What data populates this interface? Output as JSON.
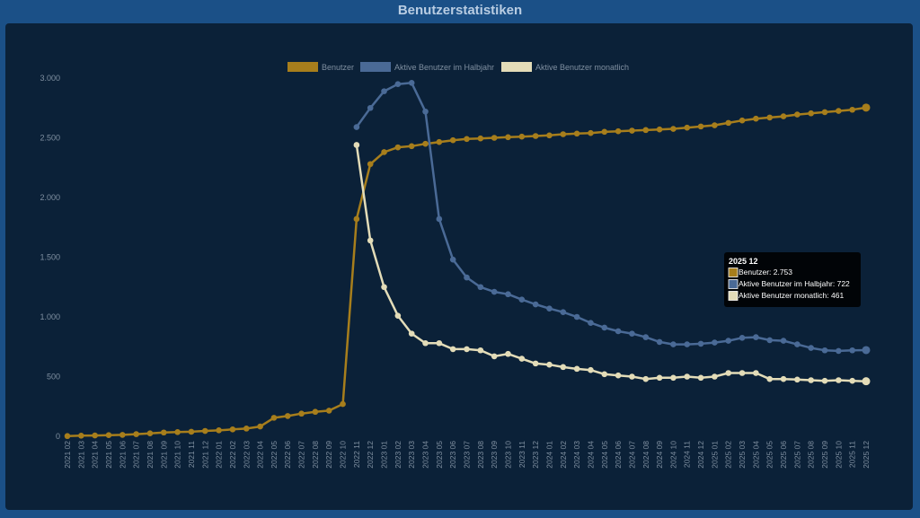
{
  "header": {
    "title": "Benutzerstatistiken"
  },
  "colors": {
    "page_background": "#1b5087",
    "panel_background": "#0b2138",
    "axis_text": "#7f8fa0",
    "benutzer": "#a77e1c",
    "halbjahr": "#4a6a96",
    "monatlich": "#e3dcb8"
  },
  "chart_data": {
    "type": "line",
    "title": "",
    "xlabel": "",
    "ylabel": "",
    "ylim": [
      0,
      3000
    ],
    "yticks": [
      0,
      500,
      1000,
      1500,
      2000,
      2500,
      3000
    ],
    "ytick_labels": [
      "0",
      "500",
      "1.000",
      "1.500",
      "2.000",
      "2.500",
      "3.000"
    ],
    "grid": false,
    "legend_position": "top-center",
    "x": [
      "2021 02",
      "2021 03",
      "2021 04",
      "2021 05",
      "2021 06",
      "2021 07",
      "2021 08",
      "2021 09",
      "2021 10",
      "2021 11",
      "2021 12",
      "2022 01",
      "2022 02",
      "2022 03",
      "2022 04",
      "2022 05",
      "2022 06",
      "2022 07",
      "2022 08",
      "2022 09",
      "2022 10",
      "2022 11",
      "2022 12",
      "2023 01",
      "2023 02",
      "2023 03",
      "2023 04",
      "2023 05",
      "2023 06",
      "2023 07",
      "2023 08",
      "2023 09",
      "2023 10",
      "2023 11",
      "2023 12",
      "2024 01",
      "2024 02",
      "2024 03",
      "2024 04",
      "2024 05",
      "2024 06",
      "2024 07",
      "2024 08",
      "2024 09",
      "2024 10",
      "2024 11",
      "2024 12",
      "2025 01",
      "2025 02",
      "2025 03",
      "2025 04",
      "2025 05",
      "2025 06",
      "2025 07",
      "2025 08",
      "2025 09",
      "2025 10",
      "2025 11",
      "2025 12"
    ],
    "series": [
      {
        "name": "Benutzer",
        "color": "#a77e1c",
        "values": [
          2,
          5,
          7,
          10,
          12,
          18,
          25,
          32,
          35,
          38,
          45,
          50,
          58,
          65,
          82,
          155,
          170,
          190,
          205,
          215,
          270,
          1820,
          2280,
          2380,
          2420,
          2430,
          2450,
          2465,
          2480,
          2490,
          2495,
          2500,
          2505,
          2510,
          2515,
          2520,
          2530,
          2535,
          2540,
          2550,
          2555,
          2560,
          2565,
          2570,
          2575,
          2585,
          2595,
          2605,
          2625,
          2645,
          2660,
          2670,
          2680,
          2695,
          2705,
          2715,
          2725,
          2735,
          2753
        ]
      },
      {
        "name": "Aktive Benutzer im Halbjahr",
        "color": "#4a6a96",
        "values": [
          null,
          null,
          null,
          null,
          null,
          null,
          null,
          null,
          null,
          null,
          null,
          null,
          null,
          null,
          null,
          null,
          null,
          null,
          null,
          null,
          null,
          2590,
          2750,
          2890,
          2950,
          2960,
          2720,
          1820,
          1480,
          1330,
          1250,
          1210,
          1190,
          1145,
          1105,
          1070,
          1040,
          1000,
          950,
          910,
          880,
          860,
          830,
          790,
          770,
          770,
          775,
          785,
          800,
          825,
          830,
          805,
          800,
          770,
          740,
          720,
          715,
          720,
          722
        ]
      },
      {
        "name": "Aktive Benutzer monatlich",
        "color": "#e3dcb8",
        "values": [
          null,
          null,
          null,
          null,
          null,
          null,
          null,
          null,
          null,
          null,
          null,
          null,
          null,
          null,
          null,
          null,
          null,
          null,
          null,
          null,
          null,
          2440,
          1640,
          1250,
          1010,
          860,
          780,
          780,
          730,
          730,
          720,
          670,
          690,
          650,
          610,
          600,
          580,
          565,
          555,
          520,
          510,
          500,
          480,
          490,
          490,
          500,
          490,
          500,
          530,
          530,
          530,
          480,
          480,
          475,
          470,
          465,
          470,
          465,
          461
        ]
      }
    ]
  },
  "tooltip": {
    "title": "2025 12",
    "lines": [
      "Benutzer: 2.753",
      "Aktive Benutzer im Halbjahr: 722",
      "Aktive Benutzer monatlich: 461"
    ]
  }
}
